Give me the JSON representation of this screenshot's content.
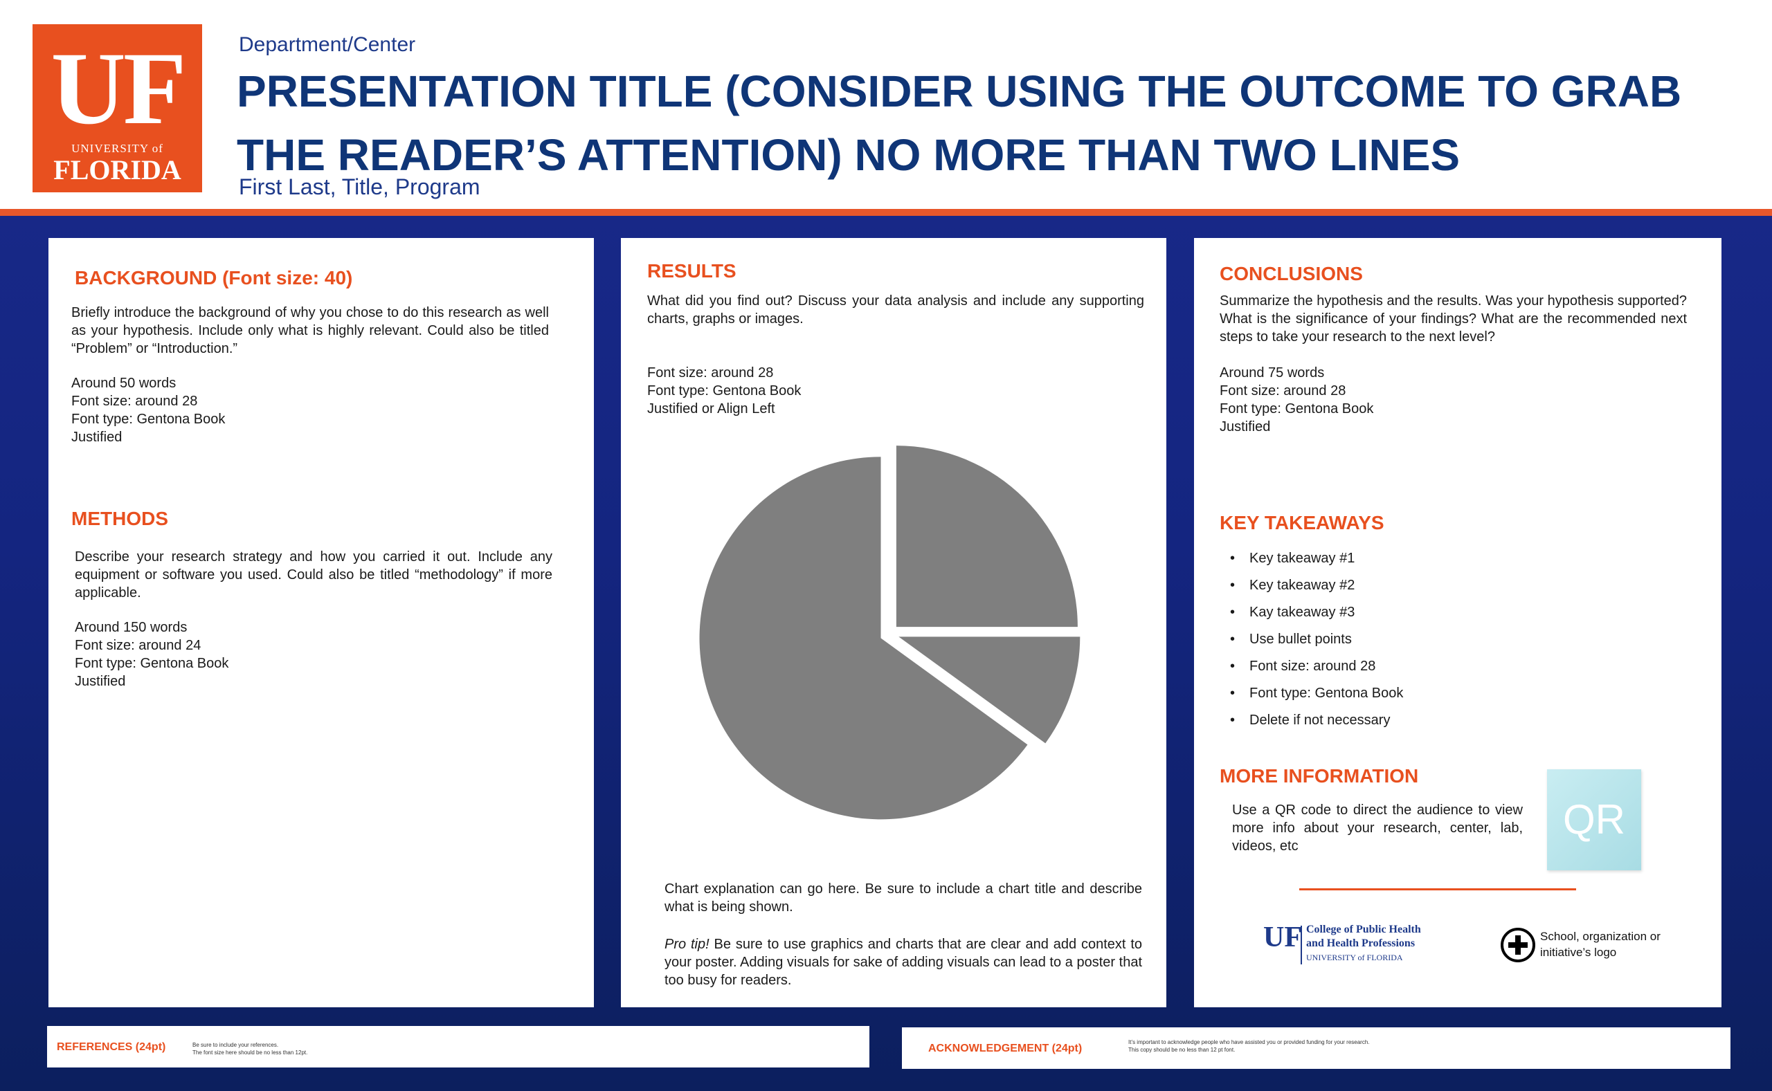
{
  "header": {
    "logo": {
      "letters": "UF",
      "university": "UNIVERSITY of",
      "state": "FLORIDA",
      "color": "#e8501f"
    },
    "department": "Department/Center",
    "title": "PRESENTATION TITLE (CONSIDER USING THE OUTCOME TO GRAB THE READER’S ATTENTION) NO MORE THAN TWO LINES",
    "author": "First Last, Title, Program"
  },
  "colors": {
    "accent": "#e8501f",
    "title": "#0f3577",
    "background": "#142580"
  },
  "left": {
    "background": {
      "heading": "BACKGROUND (Font size: 40)",
      "body": "Briefly introduce the background of why you chose to do this research as well as your hypothesis. Include only what is highly relevant. Could also be titled “Problem” or “Introduction.”",
      "notes": [
        "Around 50 words",
        "Font size: around 28",
        "Font type: Gentona Book",
        "Justified"
      ]
    },
    "methods": {
      "heading": "METHODS",
      "body": "Describe your research strategy and how you carried it out. Include any equipment or software you used. Could also be titled “methodology” if more applicable.",
      "notes": [
        "Around 150 words",
        "Font size: around 24",
        "Font type: Gentona Book",
        "Justified"
      ]
    }
  },
  "middle": {
    "heading": "RESULTS",
    "body": "What did you find out? Discuss your data analysis and include any supporting charts, graphs or images.",
    "notes": [
      "Font size: around 28",
      "Font type: Gentona Book",
      "Justified or Align Left"
    ],
    "chart_explanation": "Chart explanation can go here. Be sure to include a chart title and describe what is being shown.",
    "protip_label": "Pro tip!",
    "protip": " Be sure to use graphics and charts that are clear and add context to your poster. Adding visuals for sake of adding visuals can lead to a poster that too busy for readers."
  },
  "chart_data": {
    "type": "pie",
    "values": [
      25,
      10,
      65
    ],
    "colors": [
      "#7f7f7f",
      "#7f7f7f",
      "#7f7f7f"
    ],
    "exploded": true
  },
  "right": {
    "conclusions": {
      "heading": "CONCLUSIONS",
      "body": "Summarize the hypothesis and the results. Was your hypothesis supported? What is the significance of your findings? What are the recommended next steps to take your research to the next level?",
      "notes": [
        "Around 75 words",
        "Font size: around 28",
        "Font type: Gentona Book",
        "Justified"
      ]
    },
    "takeaways": {
      "heading": "KEY TAKEAWAYS",
      "items": [
        "Key takeaway #1",
        "Key takeaway #2",
        "Kay takeaway #3",
        "Use bullet points",
        "Font size: around 28",
        "Font type: Gentona Book",
        "Delete if not necessary"
      ]
    },
    "more_info": {
      "heading": "MORE INFORMATION",
      "body": "Use a QR code to direct the audience to view more info about your research, center, lab, videos, etc",
      "qr_label": "QR"
    },
    "logos": {
      "uf_letters": "UF",
      "college_line1": "College of Public Health",
      "college_line2": "and Health Professions",
      "college_line3": "UNIVERSITY of FLORIDA",
      "school_logo_text": "School, organization or initiative’s logo"
    }
  },
  "footer": {
    "references": {
      "heading": "REFERENCES (24pt)",
      "line1": "Be sure to include your references.",
      "line2": "The font size here should be no less than 12pt."
    },
    "acknowledgement": {
      "heading": "ACKNOWLEDGEMENT (24pt)",
      "line1": "It’s important to acknowledge people who have assisted you or provided funding for your research.",
      "line2": "This copy should be no less than 12 pt font."
    }
  }
}
